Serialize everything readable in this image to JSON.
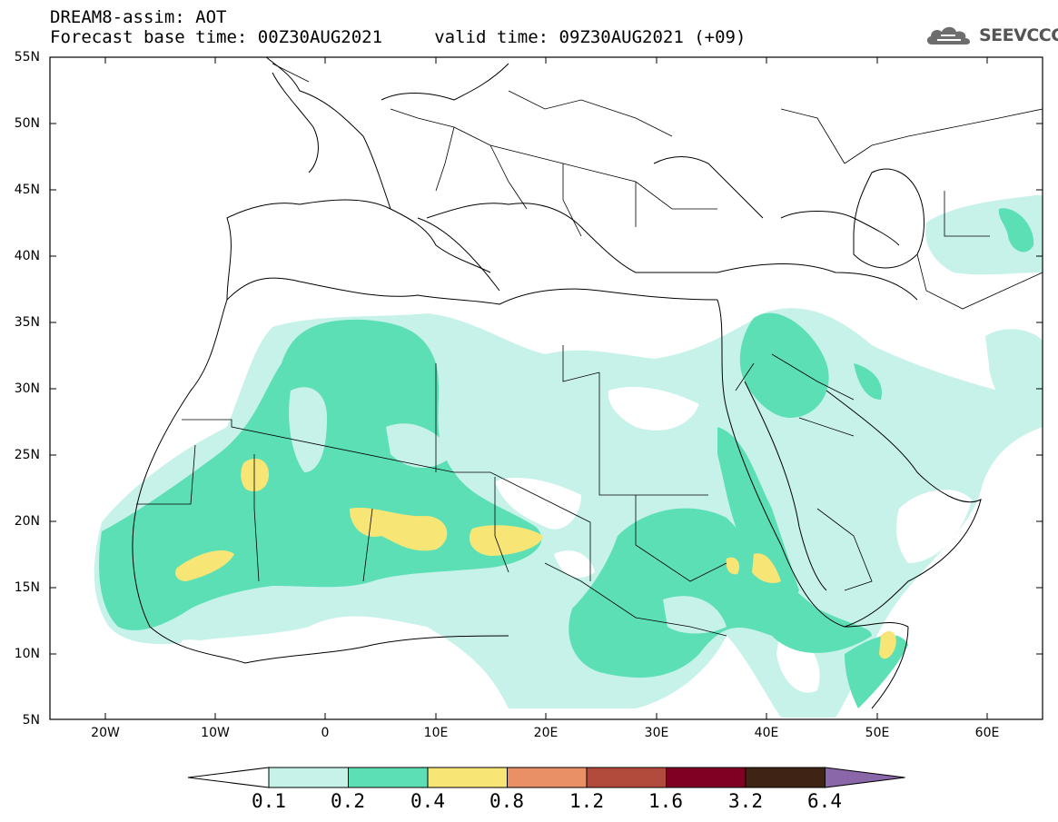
{
  "header": {
    "line1": "DREAM8-assim: AOT",
    "line2": "Forecast base time: 00Z30AUG2021     valid time: 09Z30AUG2021 (+09)"
  },
  "logo": {
    "text": "SEEVCCC",
    "icon": "cloud-icon"
  },
  "map": {
    "lon_range": [
      -25,
      65
    ],
    "lat_range": [
      5,
      55
    ],
    "lat_labels": [
      "55N",
      "50N",
      "45N",
      "40N",
      "35N",
      "30N",
      "25N",
      "20N",
      "15N",
      "10N",
      "5N"
    ],
    "lon_labels": [
      "20W",
      "10W",
      "0",
      "10E",
      "20E",
      "30E",
      "40E",
      "50E",
      "60E"
    ]
  },
  "legend": {
    "thresholds": [
      "0.1",
      "0.2",
      "0.4",
      "0.8",
      "1.2",
      "1.6",
      "3.2",
      "6.4"
    ],
    "colors": [
      "#ffffff",
      "#c7f2ea",
      "#5ddfb6",
      "#f7e675",
      "#ea9066",
      "#b34b3c",
      "#800024",
      "#3f2314",
      "#8a67a9"
    ]
  }
}
